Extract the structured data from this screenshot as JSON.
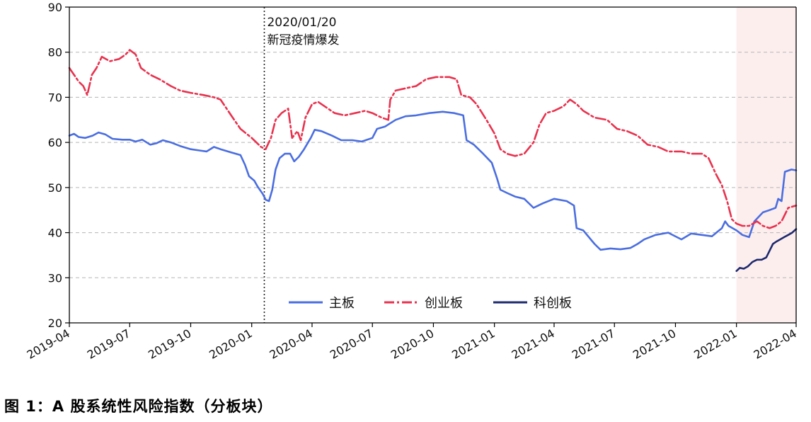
{
  "caption": "图 1：A 股系统性风险指数（分板块）",
  "chart_data": {
    "type": "line",
    "title": "",
    "xlabel": "",
    "ylabel": "",
    "ylim": [
      20,
      90
    ],
    "y_ticks": [
      20,
      30,
      40,
      50,
      60,
      70,
      80,
      90
    ],
    "x_range": [
      "2019-04-01",
      "2022-04-01"
    ],
    "x_ticks": [
      "2019-04",
      "2019-07",
      "2019-10",
      "2020-01",
      "2020-04",
      "2020-07",
      "2020-10",
      "2021-01",
      "2021-04",
      "2021-07",
      "2021-10",
      "2022-01",
      "2022-04"
    ],
    "grid": "horizontal dashed",
    "legend": {
      "placement": "bottom-center",
      "entries": [
        "主板",
        "创业板",
        "科创板"
      ]
    },
    "annotation": {
      "date": "2020-01-20",
      "lines": [
        "2020/01/20",
        "新冠疫情爆发"
      ],
      "style": "dotted vertical line"
    },
    "shaded_region": {
      "from": "2022-01-01",
      "to": "2022-04-01",
      "color": "#fdeeee"
    },
    "series": [
      {
        "name": "主板",
        "color": "#4a6ee0",
        "style": "solid",
        "points": [
          [
            "2019-04-01",
            61.5
          ],
          [
            "2019-04-08",
            61.9
          ],
          [
            "2019-04-15",
            61.2
          ],
          [
            "2019-04-25",
            61.0
          ],
          [
            "2019-05-06",
            61.5
          ],
          [
            "2019-05-15",
            62.2
          ],
          [
            "2019-05-25",
            61.8
          ],
          [
            "2019-06-05",
            60.8
          ],
          [
            "2019-06-20",
            60.6
          ],
          [
            "2019-07-01",
            60.6
          ],
          [
            "2019-07-10",
            60.2
          ],
          [
            "2019-07-20",
            60.6
          ],
          [
            "2019-08-01",
            59.5
          ],
          [
            "2019-08-10",
            59.8
          ],
          [
            "2019-08-20",
            60.5
          ],
          [
            "2019-09-01",
            60.0
          ],
          [
            "2019-09-15",
            59.2
          ],
          [
            "2019-10-01",
            58.5
          ],
          [
            "2019-10-15",
            58.2
          ],
          [
            "2019-10-25",
            58.0
          ],
          [
            "2019-11-05",
            59.0
          ],
          [
            "2019-11-15",
            58.5
          ],
          [
            "2019-12-01",
            57.8
          ],
          [
            "2019-12-15",
            57.2
          ],
          [
            "2019-12-22",
            55.0
          ],
          [
            "2019-12-28",
            52.5
          ],
          [
            "2020-01-05",
            51.5
          ],
          [
            "2020-01-10",
            50.2
          ],
          [
            "2020-01-18",
            48.5
          ],
          [
            "2020-01-22",
            47.3
          ],
          [
            "2020-01-27",
            47.0
          ],
          [
            "2020-02-01",
            49.5
          ],
          [
            "2020-02-06",
            54.0
          ],
          [
            "2020-02-12",
            56.5
          ],
          [
            "2020-02-20",
            57.5
          ],
          [
            "2020-02-28",
            57.5
          ],
          [
            "2020-03-05",
            55.8
          ],
          [
            "2020-03-12",
            56.8
          ],
          [
            "2020-03-20",
            58.5
          ],
          [
            "2020-03-30",
            61.0
          ],
          [
            "2020-04-05",
            62.8
          ],
          [
            "2020-04-15",
            62.5
          ],
          [
            "2020-05-01",
            61.5
          ],
          [
            "2020-05-15",
            60.5
          ],
          [
            "2020-06-01",
            60.5
          ],
          [
            "2020-06-15",
            60.2
          ],
          [
            "2020-07-01",
            61.0
          ],
          [
            "2020-07-08",
            63.0
          ],
          [
            "2020-07-20",
            63.5
          ],
          [
            "2020-08-05",
            65.0
          ],
          [
            "2020-08-20",
            65.8
          ],
          [
            "2020-09-05",
            66.0
          ],
          [
            "2020-09-25",
            66.5
          ],
          [
            "2020-10-15",
            66.8
          ],
          [
            "2020-11-01",
            66.5
          ],
          [
            "2020-11-15",
            66.0
          ],
          [
            "2020-11-20",
            60.5
          ],
          [
            "2020-12-01",
            59.5
          ],
          [
            "2020-12-15",
            57.5
          ],
          [
            "2020-12-28",
            55.5
          ],
          [
            "2021-01-05",
            52.0
          ],
          [
            "2021-01-10",
            49.5
          ],
          [
            "2021-01-20",
            48.8
          ],
          [
            "2021-02-01",
            48.0
          ],
          [
            "2021-02-15",
            47.5
          ],
          [
            "2021-03-01",
            45.5
          ],
          [
            "2021-03-15",
            46.5
          ],
          [
            "2021-04-01",
            47.5
          ],
          [
            "2021-04-20",
            47.0
          ],
          [
            "2021-05-01",
            46.0
          ],
          [
            "2021-05-05",
            41.0
          ],
          [
            "2021-05-15",
            40.5
          ],
          [
            "2021-06-01",
            37.5
          ],
          [
            "2021-06-10",
            36.2
          ],
          [
            "2021-06-25",
            36.5
          ],
          [
            "2021-07-10",
            36.3
          ],
          [
            "2021-07-25",
            36.6
          ],
          [
            "2021-08-05",
            37.5
          ],
          [
            "2021-08-15",
            38.5
          ],
          [
            "2021-09-01",
            39.5
          ],
          [
            "2021-09-20",
            40.0
          ],
          [
            "2021-10-10",
            38.5
          ],
          [
            "2021-10-25",
            39.8
          ],
          [
            "2021-11-10",
            39.5
          ],
          [
            "2021-11-25",
            39.2
          ],
          [
            "2021-12-10",
            41.0
          ],
          [
            "2021-12-15",
            42.5
          ],
          [
            "2021-12-20",
            41.5
          ],
          [
            "2022-01-01",
            40.5
          ],
          [
            "2022-01-10",
            39.5
          ],
          [
            "2022-01-20",
            39.0
          ],
          [
            "2022-01-28",
            42.5
          ],
          [
            "2022-02-10",
            44.5
          ],
          [
            "2022-02-20",
            45.0
          ],
          [
            "2022-03-01",
            45.5
          ],
          [
            "2022-03-05",
            47.5
          ],
          [
            "2022-03-10",
            47.0
          ],
          [
            "2022-03-15",
            53.5
          ],
          [
            "2022-03-25",
            54.0
          ],
          [
            "2022-04-01",
            53.8
          ]
        ]
      },
      {
        "name": "创业板",
        "color": "#e8324e",
        "style": "dashdot",
        "points": [
          [
            "2019-04-01",
            76.5
          ],
          [
            "2019-04-08",
            75.0
          ],
          [
            "2019-04-15",
            73.5
          ],
          [
            "2019-04-22",
            72.5
          ],
          [
            "2019-04-28",
            70.5
          ],
          [
            "2019-05-05",
            75.0
          ],
          [
            "2019-05-12",
            76.5
          ],
          [
            "2019-05-20",
            79.0
          ],
          [
            "2019-06-01",
            78.0
          ],
          [
            "2019-06-15",
            78.5
          ],
          [
            "2019-06-25",
            79.5
          ],
          [
            "2019-07-01",
            80.5
          ],
          [
            "2019-07-10",
            79.5
          ],
          [
            "2019-07-18",
            76.5
          ],
          [
            "2019-08-01",
            75.0
          ],
          [
            "2019-08-15",
            74.0
          ],
          [
            "2019-09-01",
            72.5
          ],
          [
            "2019-09-15",
            71.5
          ],
          [
            "2019-10-01",
            71.0
          ],
          [
            "2019-10-20",
            70.5
          ],
          [
            "2019-11-05",
            70.0
          ],
          [
            "2019-11-15",
            69.5
          ],
          [
            "2019-12-01",
            66.0
          ],
          [
            "2019-12-15",
            63.0
          ],
          [
            "2020-01-01",
            61.0
          ],
          [
            "2020-01-15",
            59.0
          ],
          [
            "2020-01-22",
            58.5
          ],
          [
            "2020-01-30",
            61.0
          ],
          [
            "2020-02-06",
            65.0
          ],
          [
            "2020-02-15",
            66.5
          ],
          [
            "2020-02-25",
            67.5
          ],
          [
            "2020-03-02",
            61.0
          ],
          [
            "2020-03-10",
            62.5
          ],
          [
            "2020-03-15",
            60.5
          ],
          [
            "2020-03-22",
            65.5
          ],
          [
            "2020-04-01",
            68.5
          ],
          [
            "2020-04-10",
            69.0
          ],
          [
            "2020-04-20",
            68.0
          ],
          [
            "2020-05-05",
            66.5
          ],
          [
            "2020-05-20",
            66.0
          ],
          [
            "2020-06-05",
            66.5
          ],
          [
            "2020-06-20",
            67.0
          ],
          [
            "2020-07-01",
            66.5
          ],
          [
            "2020-07-15",
            65.5
          ],
          [
            "2020-07-25",
            65.0
          ],
          [
            "2020-07-28",
            69.5
          ],
          [
            "2020-08-05",
            71.5
          ],
          [
            "2020-08-20",
            72.0
          ],
          [
            "2020-09-05",
            72.5
          ],
          [
            "2020-09-20",
            74.0
          ],
          [
            "2020-10-05",
            74.5
          ],
          [
            "2020-10-25",
            74.5
          ],
          [
            "2020-11-05",
            74.0
          ],
          [
            "2020-11-12",
            70.5
          ],
          [
            "2020-11-25",
            70.0
          ],
          [
            "2020-12-05",
            68.5
          ],
          [
            "2020-12-20",
            65.0
          ],
          [
            "2021-01-01",
            62.0
          ],
          [
            "2021-01-10",
            58.5
          ],
          [
            "2021-01-20",
            57.5
          ],
          [
            "2021-02-01",
            57.0
          ],
          [
            "2021-02-15",
            57.5
          ],
          [
            "2021-03-01",
            60.0
          ],
          [
            "2021-03-10",
            64.0
          ],
          [
            "2021-03-20",
            66.5
          ],
          [
            "2021-04-01",
            67.0
          ],
          [
            "2021-04-15",
            68.0
          ],
          [
            "2021-04-25",
            69.5
          ],
          [
            "2021-05-05",
            68.5
          ],
          [
            "2021-05-15",
            67.0
          ],
          [
            "2021-06-01",
            65.5
          ],
          [
            "2021-06-20",
            65.0
          ],
          [
            "2021-07-05",
            63.0
          ],
          [
            "2021-07-20",
            62.5
          ],
          [
            "2021-08-05",
            61.5
          ],
          [
            "2021-08-20",
            59.5
          ],
          [
            "2021-09-05",
            59.0
          ],
          [
            "2021-09-20",
            58.0
          ],
          [
            "2021-10-10",
            58.0
          ],
          [
            "2021-10-25",
            57.5
          ],
          [
            "2021-11-10",
            57.5
          ],
          [
            "2021-11-20",
            56.5
          ],
          [
            "2021-12-01",
            53.0
          ],
          [
            "2021-12-10",
            50.5
          ],
          [
            "2021-12-18",
            47.0
          ],
          [
            "2021-12-25",
            43.0
          ],
          [
            "2022-01-01",
            42.0
          ],
          [
            "2022-01-10",
            41.5
          ],
          [
            "2022-01-20",
            41.5
          ],
          [
            "2022-02-01",
            42.5
          ],
          [
            "2022-02-10",
            41.5
          ],
          [
            "2022-02-20",
            41.0
          ],
          [
            "2022-03-01",
            41.5
          ],
          [
            "2022-03-10",
            42.5
          ],
          [
            "2022-03-20",
            45.5
          ],
          [
            "2022-04-01",
            46.0
          ]
        ]
      },
      {
        "name": "科创板",
        "color": "#1e2a6e",
        "style": "solid",
        "points": [
          [
            "2022-01-01",
            31.5
          ],
          [
            "2022-01-06",
            32.2
          ],
          [
            "2022-01-12",
            32.0
          ],
          [
            "2022-01-18",
            32.5
          ],
          [
            "2022-01-25",
            33.5
          ],
          [
            "2022-02-01",
            34.0
          ],
          [
            "2022-02-08",
            34.0
          ],
          [
            "2022-02-15",
            34.5
          ],
          [
            "2022-02-20",
            36.0
          ],
          [
            "2022-02-25",
            37.5
          ],
          [
            "2022-03-02",
            38.0
          ],
          [
            "2022-03-08",
            38.5
          ],
          [
            "2022-03-14",
            39.0
          ],
          [
            "2022-03-20",
            39.5
          ],
          [
            "2022-03-26",
            40.0
          ],
          [
            "2022-04-01",
            40.8
          ]
        ]
      }
    ]
  }
}
